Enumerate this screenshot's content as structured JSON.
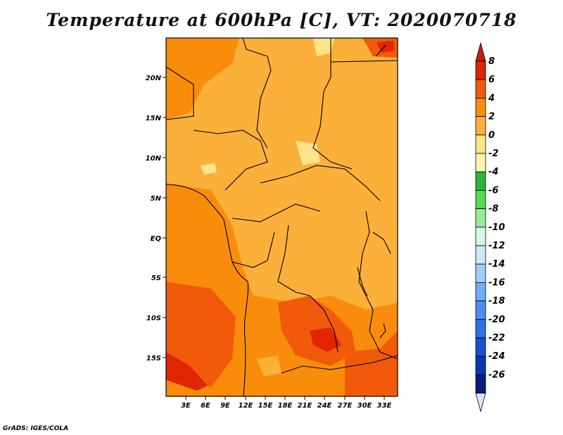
{
  "title": "Temperature at 600hPa [C], VT: 2020070718",
  "credit": "GrADS: IGES/COLA",
  "map": {
    "lon_ticks": [
      "3E",
      "6E",
      "9E",
      "12E",
      "15E",
      "18E",
      "21E",
      "24E",
      "27E",
      "30E",
      "33E"
    ],
    "lat_ticks": [
      "20N",
      "15N",
      "10N",
      "5N",
      "EQ",
      "5S",
      "10S",
      "15S"
    ]
  },
  "colorbar": {
    "levels": [
      "8",
      "6",
      "4",
      "2",
      "0",
      "-2",
      "-4",
      "-6",
      "-8",
      "-10",
      "-12",
      "-14",
      "-16",
      "-18",
      "-20",
      "-22",
      "-24",
      "-26"
    ],
    "colors": [
      "#a00000",
      "#e02500",
      "#f05a0a",
      "#fa8c0c",
      "#fbb03a",
      "#fde38a",
      "#fdf5b0",
      "#2ab33c",
      "#58d858",
      "#98ec98",
      "#d8f8e8",
      "#cde8fa",
      "#a0cdfa",
      "#72aef5",
      "#4c8ff0",
      "#2f70e6",
      "#1650d0",
      "#0838b4",
      "#081c78"
    ],
    "over_color": "#c81e0a",
    "under_color": "#e0e2fb"
  }
}
